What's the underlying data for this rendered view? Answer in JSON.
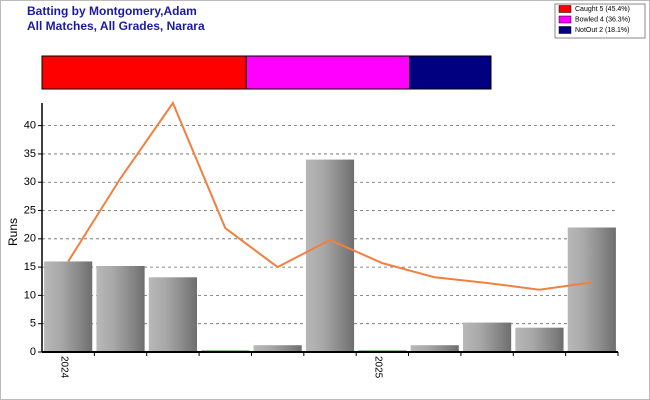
{
  "chart_data": [
    {
      "type": "stacked-hbar",
      "title": "Batting by Montgomery,Adam",
      "subtitle": "All Matches, All Grades, Narara",
      "series": [
        {
          "name": "Caught 5 (45.4%)",
          "color": "#ff0000",
          "values": [
            45.4
          ]
        },
        {
          "name": "Bowled 4 (36.3%)",
          "color": "#ff00ff",
          "values": [
            36.3
          ]
        },
        {
          "name": "NotOut 2 (18.1%)",
          "color": "#000080",
          "values": [
            18.1
          ]
        }
      ]
    },
    {
      "type": "bar-line",
      "ylabel": "Runs",
      "categories": [
        "2024",
        null,
        null,
        null,
        null,
        null,
        "2025",
        null,
        null,
        null,
        null
      ],
      "series": [
        {
          "type": "bar",
          "color": "#999999",
          "values": [
            16,
            15.2,
            13.2,
            0,
            1.2,
            34,
            0,
            1.2,
            5.2,
            4.3,
            22
          ]
        },
        {
          "type": "line",
          "color": "#f08040",
          "values": [
            16,
            30.7,
            44,
            21.9,
            15,
            19.8,
            15.7,
            13.2,
            12.2,
            11,
            12.3
          ]
        }
      ],
      "ylim": [
        0,
        44
      ],
      "yticks": [
        0,
        5,
        10,
        15,
        20,
        25,
        30,
        35,
        40
      ],
      "grid": true
    }
  ]
}
